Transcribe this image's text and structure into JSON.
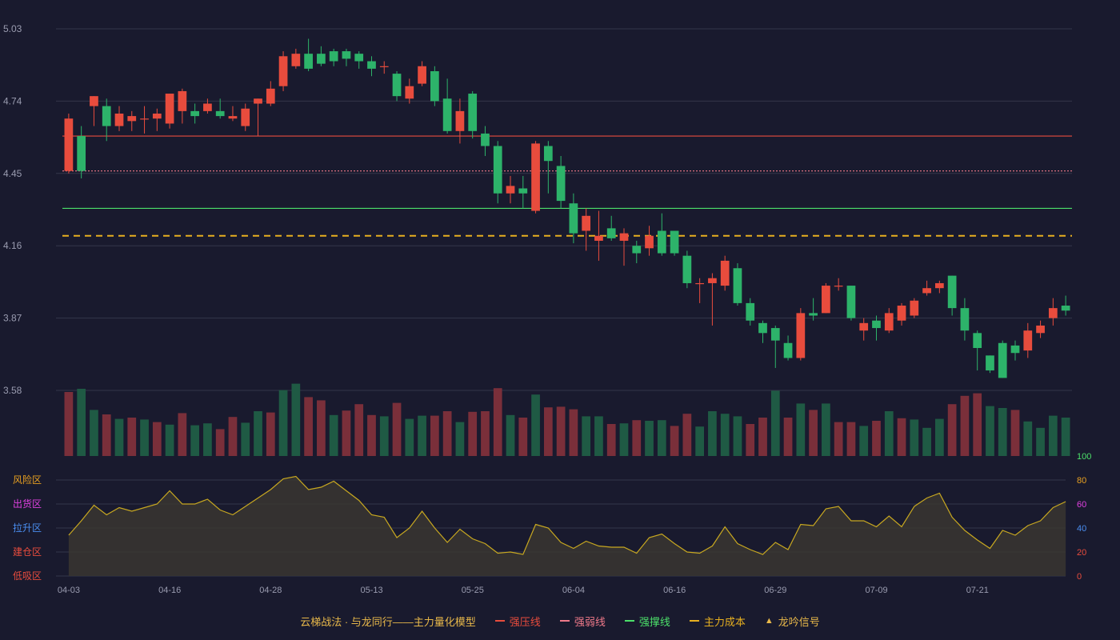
{
  "chart_data": {
    "type": "candlestick",
    "x_labels": [
      "04-03",
      "04-16",
      "04-28",
      "05-13",
      "05-25",
      "06-04",
      "06-16",
      "06-29",
      "07-09",
      "07-21"
    ],
    "price_axis": {
      "ticks": [
        "5.03",
        "4.74",
        "4.45",
        "4.16",
        "3.87",
        "3.58"
      ],
      "range": [
        3.58,
        5.03
      ]
    },
    "lines": {
      "pressure": {
        "name": "强压线",
        "value": 4.6,
        "color": "#e84c3d",
        "style": "solid"
      },
      "weak": {
        "name": "强弱线",
        "value": 4.46,
        "color": "#f07a8a",
        "style": "dotted"
      },
      "support": {
        "name": "强撑线",
        "value": 4.31,
        "color": "#4ce06a",
        "style": "solid"
      },
      "cost": {
        "name": "主力成本",
        "value": 4.2,
        "color": "#e8b020",
        "style": "dashed"
      }
    },
    "candles": [
      [
        4.46,
        4.67,
        4.45,
        4.69
      ],
      [
        4.6,
        4.46,
        4.43,
        4.64
      ],
      [
        4.72,
        4.76,
        4.64,
        4.76
      ],
      [
        4.72,
        4.64,
        4.58,
        4.75
      ],
      [
        4.64,
        4.69,
        4.62,
        4.72
      ],
      [
        4.66,
        4.68,
        4.62,
        4.7
      ],
      [
        4.67,
        4.67,
        4.61,
        4.72
      ],
      [
        4.67,
        4.69,
        4.62,
        4.71
      ],
      [
        4.65,
        4.77,
        4.63,
        4.77
      ],
      [
        4.7,
        4.78,
        4.65,
        4.79
      ],
      [
        4.7,
        4.68,
        4.65,
        4.73
      ],
      [
        4.7,
        4.73,
        4.69,
        4.75
      ],
      [
        4.7,
        4.68,
        4.67,
        4.75
      ],
      [
        4.67,
        4.68,
        4.66,
        4.72
      ],
      [
        4.64,
        4.71,
        4.62,
        4.73
      ],
      [
        4.73,
        4.75,
        4.6,
        4.75
      ],
      [
        4.73,
        4.79,
        4.72,
        4.82
      ],
      [
        4.8,
        4.92,
        4.78,
        4.94
      ],
      [
        4.88,
        4.93,
        4.87,
        4.95
      ],
      [
        4.93,
        4.87,
        4.86,
        4.99
      ],
      [
        4.93,
        4.89,
        4.88,
        4.96
      ],
      [
        4.94,
        4.9,
        4.88,
        4.95
      ],
      [
        4.94,
        4.91,
        4.88,
        4.95
      ],
      [
        4.93,
        4.9,
        4.87,
        4.94
      ],
      [
        4.9,
        4.87,
        4.84,
        4.92
      ],
      [
        4.88,
        4.88,
        4.85,
        4.9
      ],
      [
        4.85,
        4.76,
        4.74,
        4.86
      ],
      [
        4.75,
        4.8,
        4.73,
        4.83
      ],
      [
        4.81,
        4.88,
        4.8,
        4.9
      ],
      [
        4.86,
        4.74,
        4.72,
        4.88
      ],
      [
        4.75,
        4.62,
        4.61,
        4.83
      ],
      [
        4.62,
        4.7,
        4.57,
        4.75
      ],
      [
        4.77,
        4.62,
        4.59,
        4.78
      ],
      [
        4.61,
        4.56,
        4.52,
        4.64
      ],
      [
        4.56,
        4.37,
        4.33,
        4.58
      ],
      [
        4.37,
        4.4,
        4.33,
        4.44
      ],
      [
        4.39,
        4.37,
        4.31,
        4.44
      ],
      [
        4.3,
        4.57,
        4.29,
        4.58
      ],
      [
        4.56,
        4.5,
        4.37,
        4.58
      ],
      [
        4.48,
        4.34,
        4.31,
        4.52
      ],
      [
        4.33,
        4.21,
        4.17,
        4.37
      ],
      [
        4.22,
        4.28,
        4.14,
        4.31
      ],
      [
        4.18,
        4.2,
        4.1,
        4.3
      ],
      [
        4.23,
        4.19,
        4.18,
        4.28
      ],
      [
        4.18,
        4.21,
        4.08,
        4.23
      ],
      [
        4.16,
        4.13,
        4.09,
        4.18
      ],
      [
        4.15,
        4.2,
        4.12,
        4.24
      ],
      [
        4.22,
        4.13,
        4.12,
        4.29
      ],
      [
        4.22,
        4.13,
        4.12,
        4.22
      ],
      [
        4.12,
        4.01,
        3.99,
        4.14
      ],
      [
        4.01,
        4.01,
        3.93,
        4.03
      ],
      [
        4.01,
        4.03,
        3.84,
        4.05
      ],
      [
        4.0,
        4.1,
        3.98,
        4.12
      ],
      [
        4.07,
        3.93,
        3.92,
        4.09
      ],
      [
        3.93,
        3.86,
        3.84,
        3.95
      ],
      [
        3.85,
        3.81,
        3.77,
        3.86
      ],
      [
        3.83,
        3.78,
        3.67,
        3.84
      ],
      [
        3.77,
        3.71,
        3.7,
        3.8
      ],
      [
        3.71,
        3.89,
        3.7,
        3.91
      ],
      [
        3.89,
        3.88,
        3.86,
        3.95
      ],
      [
        3.89,
        4.0,
        3.89,
        4.01
      ],
      [
        4.0,
        4.0,
        3.98,
        4.03
      ],
      [
        4.0,
        3.87,
        3.86,
        4.0
      ],
      [
        3.82,
        3.85,
        3.78,
        3.87
      ],
      [
        3.86,
        3.83,
        3.78,
        3.88
      ],
      [
        3.82,
        3.89,
        3.81,
        3.91
      ],
      [
        3.86,
        3.92,
        3.84,
        3.93
      ],
      [
        3.88,
        3.94,
        3.87,
        3.95
      ],
      [
        3.97,
        3.99,
        3.96,
        4.02
      ],
      [
        3.99,
        4.01,
        3.97,
        4.02
      ],
      [
        4.04,
        3.91,
        3.88,
        4.04
      ],
      [
        3.91,
        3.82,
        3.78,
        3.95
      ],
      [
        3.81,
        3.75,
        3.66,
        3.82
      ],
      [
        3.72,
        3.66,
        3.65,
        3.72
      ],
      [
        3.77,
        3.63,
        3.63,
        3.78
      ],
      [
        3.76,
        3.73,
        3.7,
        3.78
      ],
      [
        3.74,
        3.82,
        3.71,
        3.85
      ],
      [
        3.81,
        3.84,
        3.79,
        3.86
      ],
      [
        3.87,
        3.91,
        3.84,
        3.95
      ],
      [
        3.92,
        3.9,
        3.88,
        3.96
      ]
    ],
    "volume": [
      [
        1.0,
        "r"
      ],
      [
        1.05,
        "g"
      ],
      [
        0.72,
        "g"
      ],
      [
        0.65,
        "r"
      ],
      [
        0.58,
        "g"
      ],
      [
        0.6,
        "r"
      ],
      [
        0.57,
        "g"
      ],
      [
        0.53,
        "r"
      ],
      [
        0.49,
        "g"
      ],
      [
        0.67,
        "r"
      ],
      [
        0.48,
        "g"
      ],
      [
        0.51,
        "g"
      ],
      [
        0.42,
        "r"
      ],
      [
        0.61,
        "r"
      ],
      [
        0.52,
        "g"
      ],
      [
        0.7,
        "g"
      ],
      [
        0.68,
        "r"
      ],
      [
        1.03,
        "g"
      ],
      [
        1.13,
        "g"
      ],
      [
        0.92,
        "r"
      ],
      [
        0.87,
        "r"
      ],
      [
        0.64,
        "g"
      ],
      [
        0.71,
        "r"
      ],
      [
        0.81,
        "r"
      ],
      [
        0.64,
        "r"
      ],
      [
        0.62,
        "g"
      ],
      [
        0.83,
        "r"
      ],
      [
        0.58,
        "g"
      ],
      [
        0.63,
        "g"
      ],
      [
        0.63,
        "r"
      ],
      [
        0.7,
        "r"
      ],
      [
        0.53,
        "g"
      ],
      [
        0.69,
        "r"
      ],
      [
        0.7,
        "r"
      ],
      [
        1.06,
        "r"
      ],
      [
        0.64,
        "g"
      ],
      [
        0.6,
        "r"
      ],
      [
        0.96,
        "g"
      ],
      [
        0.76,
        "r"
      ],
      [
        0.77,
        "r"
      ],
      [
        0.73,
        "r"
      ],
      [
        0.62,
        "g"
      ],
      [
        0.62,
        "g"
      ],
      [
        0.5,
        "r"
      ],
      [
        0.51,
        "g"
      ],
      [
        0.56,
        "r"
      ],
      [
        0.55,
        "g"
      ],
      [
        0.56,
        "g"
      ],
      [
        0.47,
        "r"
      ],
      [
        0.66,
        "r"
      ],
      [
        0.46,
        "g"
      ],
      [
        0.7,
        "g"
      ],
      [
        0.66,
        "g"
      ],
      [
        0.62,
        "g"
      ],
      [
        0.5,
        "r"
      ],
      [
        0.6,
        "r"
      ],
      [
        1.02,
        "g"
      ],
      [
        0.6,
        "r"
      ],
      [
        0.82,
        "g"
      ],
      [
        0.72,
        "r"
      ],
      [
        0.82,
        "g"
      ],
      [
        0.53,
        "r"
      ],
      [
        0.53,
        "r"
      ],
      [
        0.47,
        "g"
      ],
      [
        0.55,
        "r"
      ],
      [
        0.7,
        "g"
      ],
      [
        0.59,
        "r"
      ],
      [
        0.57,
        "g"
      ],
      [
        0.44,
        "g"
      ],
      [
        0.58,
        "g"
      ],
      [
        0.81,
        "r"
      ],
      [
        0.94,
        "r"
      ],
      [
        0.98,
        "r"
      ],
      [
        0.78,
        "g"
      ],
      [
        0.75,
        "g"
      ],
      [
        0.72,
        "r"
      ],
      [
        0.54,
        "g"
      ],
      [
        0.44,
        "g"
      ],
      [
        0.63,
        "g"
      ],
      [
        0.6,
        "g"
      ]
    ],
    "indicator": {
      "range": [
        0,
        100
      ],
      "ticks": [
        "100",
        "80",
        "60",
        "40",
        "20",
        "0"
      ],
      "tick_colors": [
        "#4ce06a",
        "#e8a020",
        "#e040e0",
        "#4a8ef0",
        "#e84c3d",
        "#e84c3d"
      ],
      "zones": [
        {
          "label": "风险区",
          "color": "#e8a020"
        },
        {
          "label": "出货区",
          "color": "#e040e0"
        },
        {
          "label": "拉升区",
          "color": "#4a8ef0"
        },
        {
          "label": "建仓区",
          "color": "#e84c3d"
        },
        {
          "label": "低吸区",
          "color": "#e84c3d"
        }
      ],
      "values": [
        34,
        46,
        59,
        51,
        57,
        54,
        57,
        60,
        71,
        60,
        60,
        64,
        55,
        51,
        58,
        65,
        72,
        81,
        83,
        72,
        74,
        79,
        71,
        63,
        51,
        49,
        32,
        40,
        54,
        40,
        28,
        39,
        31,
        27,
        19,
        20,
        18,
        43,
        40,
        28,
        23,
        29,
        25,
        24,
        24,
        19,
        32,
        35,
        27,
        20,
        19,
        25,
        41,
        27,
        22,
        18,
        28,
        22,
        43,
        42,
        56,
        58,
        46,
        46,
        41,
        50,
        41,
        58,
        65,
        69,
        49,
        38,
        30,
        23,
        38,
        34,
        42,
        46,
        57,
        62
      ]
    }
  },
  "legend": {
    "title": "云梯战法 · 与龙同行——主力量化模型",
    "items": [
      {
        "label": "强压线",
        "color": "#e84c3d",
        "style": "line"
      },
      {
        "label": "强弱线",
        "color": "#f07a8a",
        "style": "dash"
      },
      {
        "label": "强撑线",
        "color": "#4ce06a",
        "style": "line"
      },
      {
        "label": "主力成本",
        "color": "#e8b020",
        "style": "dash"
      },
      {
        "label": "龙吟信号",
        "color": "#e8b84a",
        "style": "triangle"
      }
    ]
  },
  "colors": {
    "up": "#e84c3d",
    "down": "#2db36a",
    "up_vol": "#7a2f3a",
    "down_vol": "#1f5a44",
    "grid": "#34364a",
    "axis_text": "#9a9cb0",
    "indicator_line": "#c8a820"
  }
}
